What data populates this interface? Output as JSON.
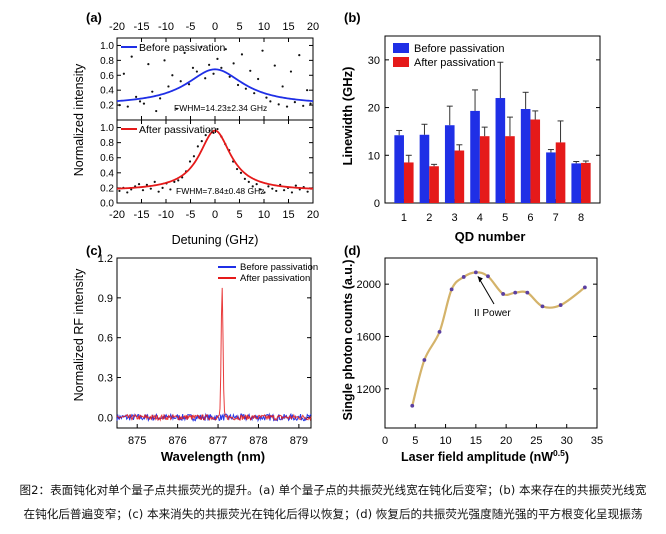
{
  "colors": {
    "blue": "#1f2fe6",
    "red": "#e51a1a",
    "gold": "#d4b36a",
    "dot": "#5b3fa0",
    "axis": "#000000"
  },
  "chart_data": [
    {
      "panel": "(a)",
      "type": "scatter",
      "xlabel": "Detuning (GHz)",
      "ylabel": "Normalized intensity",
      "xlim": [
        -20,
        20
      ],
      "xticks": [
        "-20",
        "-15",
        "-10",
        "-5",
        "0",
        "5",
        "10",
        "15",
        "20"
      ],
      "subplots": [
        {
          "legend": "Before passivation",
          "annotation": "FWHM=14.23±2.34 GHz",
          "ylim": [
            0.0,
            1.1
          ],
          "yticks": [
            "0.2",
            "0.4",
            "0.6",
            "0.8",
            "1.0"
          ],
          "fit": {
            "amplitude": 0.48,
            "center": 0.0,
            "fwhm": 14.23,
            "offset": 0.2
          },
          "x": [
            -19.5,
            -18.6,
            -17.8,
            -17.0,
            -16.1,
            -15.3,
            -14.5,
            -13.6,
            -12.8,
            -12.0,
            -11.2,
            -10.3,
            -9.5,
            -8.7,
            -7.8,
            -7.0,
            -6.2,
            -5.3,
            -4.5,
            -3.7,
            -2.8,
            -2.0,
            -1.2,
            -0.3,
            0.5,
            1.3,
            2.2,
            3.0,
            3.8,
            4.7,
            5.5,
            6.3,
            7.2,
            8.0,
            8.8,
            9.7,
            10.5,
            11.3,
            12.2,
            13.0,
            13.8,
            14.7,
            15.5,
            16.3,
            17.2,
            18.0,
            18.8,
            19.5
          ],
          "y": [
            0.2,
            0.62,
            0.18,
            0.85,
            0.31,
            0.25,
            0.22,
            0.75,
            0.38,
            0.12,
            0.29,
            0.8,
            0.45,
            0.6,
            0.15,
            0.52,
            0.9,
            0.48,
            0.7,
            0.65,
            0.98,
            0.56,
            0.74,
            0.62,
            0.82,
            0.7,
            0.95,
            0.58,
            0.76,
            0.47,
            0.88,
            0.42,
            0.66,
            0.36,
            0.55,
            0.93,
            0.3,
            0.25,
            0.73,
            0.21,
            0.45,
            0.18,
            0.65,
            0.24,
            0.87,
            0.19,
            0.4,
            0.22
          ]
        },
        {
          "legend": "After passivation",
          "annotation": "FWHM=7.84±0.48 GHz",
          "ylim": [
            0.0,
            1.1
          ],
          "yticks": [
            "0.0",
            "0.2",
            "0.4",
            "0.6",
            "0.8",
            "1.0"
          ],
          "fit": {
            "amplitude": 0.8,
            "center": 0.0,
            "fwhm": 7.84,
            "offset": 0.16
          },
          "x": [
            -19.5,
            -18.7,
            -17.9,
            -17.1,
            -16.3,
            -15.5,
            -14.7,
            -13.9,
            -13.1,
            -12.3,
            -11.5,
            -10.7,
            -9.9,
            -9.1,
            -8.3,
            -7.5,
            -6.7,
            -5.9,
            -5.1,
            -4.3,
            -3.5,
            -2.7,
            -1.9,
            -1.1,
            -0.3,
            0.5,
            1.3,
            2.1,
            2.9,
            3.7,
            4.5,
            5.3,
            6.1,
            6.9,
            7.7,
            8.5,
            9.3,
            10.1,
            10.9,
            11.7,
            12.5,
            13.3,
            14.1,
            14.9,
            15.7,
            16.5,
            17.3,
            18.1,
            18.9,
            19.6
          ],
          "y": [
            0.16,
            0.2,
            0.14,
            0.18,
            0.22,
            0.25,
            0.17,
            0.24,
            0.19,
            0.28,
            0.15,
            0.2,
            0.26,
            0.18,
            0.28,
            0.3,
            0.34,
            0.42,
            0.55,
            0.62,
            0.75,
            0.82,
            0.9,
            0.96,
            0.93,
            0.98,
            0.88,
            0.78,
            0.7,
            0.55,
            0.45,
            0.4,
            0.32,
            0.28,
            0.22,
            0.25,
            0.18,
            0.14,
            0.22,
            0.19,
            0.16,
            0.24,
            0.17,
            0.2,
            0.14,
            0.23,
            0.18,
            0.21,
            0.15,
            0.19
          ]
        }
      ]
    },
    {
      "panel": "(b)",
      "type": "bar",
      "xlabel": "QD number",
      "ylabel": "Linewidth (GHz)",
      "categories": [
        "1",
        "2",
        "3",
        "4",
        "5",
        "6",
        "7",
        "8"
      ],
      "ylim": [
        0,
        35
      ],
      "yticks": [
        "0",
        "10",
        "20",
        "30"
      ],
      "series": [
        {
          "name": "Before passivation",
          "values": [
            14.2,
            14.3,
            16.3,
            19.3,
            22.0,
            19.7,
            10.6,
            8.3
          ],
          "errors": [
            1.0,
            2.2,
            4.0,
            4.4,
            7.5,
            3.5,
            0.6,
            0.4
          ]
        },
        {
          "name": "After passivation",
          "values": [
            8.5,
            7.7,
            11.0,
            14.0,
            14.0,
            17.5,
            12.7,
            8.4
          ],
          "errors": [
            1.5,
            0.4,
            1.2,
            1.9,
            4.0,
            1.8,
            4.5,
            0.4
          ]
        }
      ]
    },
    {
      "panel": "(c)",
      "type": "line",
      "xlabel": "Wavelength (nm)",
      "ylabel": "Normalized RF intensity",
      "xlim": [
        874.5,
        879.3
      ],
      "ylim": [
        -0.08,
        1.2
      ],
      "xticks": [
        "875",
        "876",
        "877",
        "878",
        "879"
      ],
      "yticks": [
        "0.0",
        "0.3",
        "0.6",
        "0.9",
        "1.2"
      ],
      "series": [
        {
          "name": "Before passivation",
          "noise": 0.025,
          "peak": null
        },
        {
          "name": "After passivation",
          "noise": 0.02,
          "peak": {
            "x": 877.1,
            "y": 0.98,
            "width": 0.05
          }
        }
      ]
    },
    {
      "panel": "(d)",
      "type": "scatter",
      "xlabel": "Laser field amplitude (nW",
      "xlabel_sup": "0.5",
      "xlabel_end": ")",
      "ylabel": "Single photon counts (a.u.)",
      "xlim": [
        0,
        35
      ],
      "ylim": [
        900,
        2200
      ],
      "xticks": [
        "0",
        "5",
        "10",
        "15",
        "20",
        "25",
        "30",
        "35"
      ],
      "yticks": [
        "1200",
        "1600",
        "2000"
      ],
      "annotation": "II Power",
      "x": [
        4.5,
        6.5,
        9.0,
        11.0,
        13.0,
        15.0,
        17.0,
        19.5,
        21.5,
        23.5,
        26.0,
        29.0,
        33.0
      ],
      "y": [
        1070,
        1420,
        1635,
        1960,
        2055,
        2090,
        2060,
        1925,
        1935,
        1935,
        1830,
        1840,
        1975
      ]
    }
  ],
  "caption": {
    "line1": "图2：表面钝化对单个量子点共振荧光的提升。(a) 单个量子点的共振荧光线宽在钝化后变窄；(b) 本来存在的共振荧光线宽",
    "line2": "在钝化后普遍变窄；(c) 本来消失的共振荧光在钝化后得以恢复；(d) 恢复后的共振荧光强度随光强的平方根变化呈现振荡"
  }
}
